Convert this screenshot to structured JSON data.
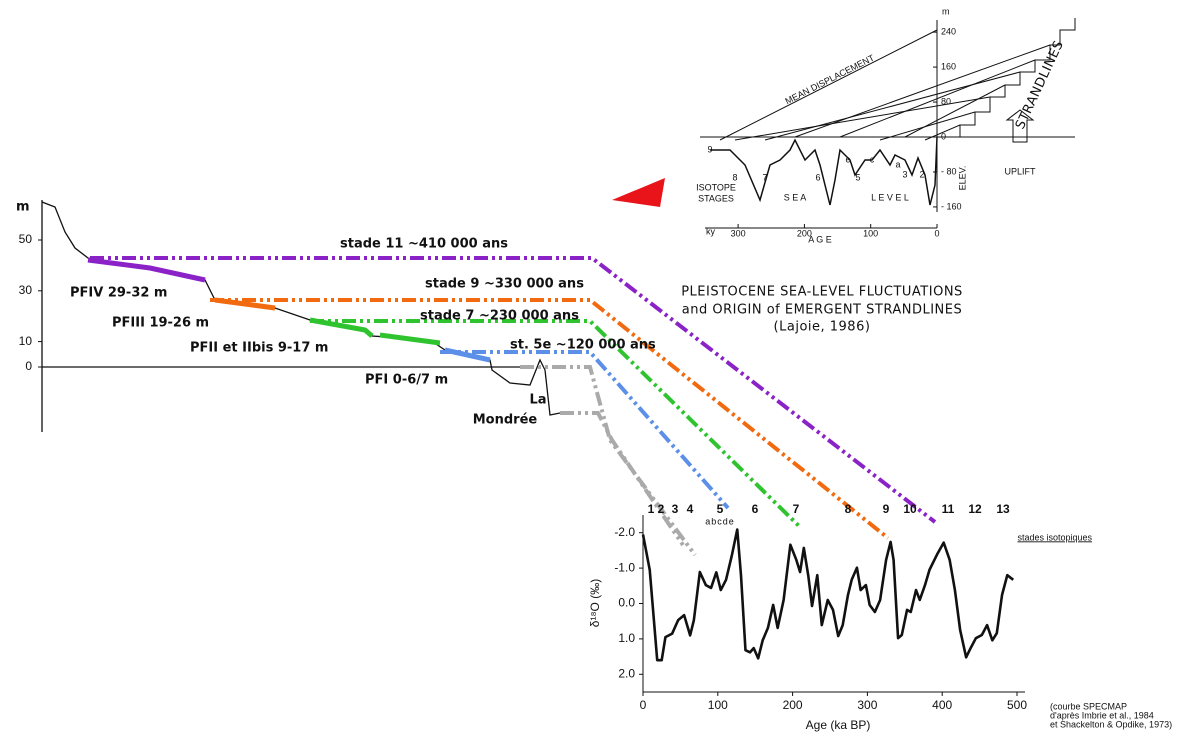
{
  "profile": {
    "y_unit": "m",
    "yticks": [
      50,
      30,
      10,
      0
    ],
    "terraces": [
      {
        "label": "PFIV 29-32 m",
        "color": "#8a22c8"
      },
      {
        "label": "PFIII 19-26 m",
        "color": "#f26a10"
      },
      {
        "label": "PFII et IIbis 9-17 m",
        "color": "#2fc42f"
      },
      {
        "label": "PFI 0-6/7 m",
        "color": "#5b8fe8"
      }
    ],
    "stades": [
      {
        "label": "stade 11 ~410 000 ans",
        "color": "#8a22c8"
      },
      {
        "label": "stade 9 ~330 000 ans",
        "color": "#f26a10"
      },
      {
        "label": "stade 7 ~230 000 ans",
        "color": "#2fc42f"
      },
      {
        "label": "st. 5e ~120 000 ans",
        "color": "#5b8fe8"
      }
    ],
    "place": [
      "La",
      "Mondrée"
    ]
  },
  "inset": {
    "mean_displacement": "MEAN DISPLACEMENT",
    "strandlines": "STRANDLINES",
    "uplift": "UPLIFT",
    "sea": "S E A",
    "level": "L E V E L",
    "isotope_stages": [
      "ISOTOPE",
      "STAGES"
    ],
    "elev": "ELEV.",
    "age": "A G E",
    "ky": "ky",
    "m": "m",
    "stage_numbers": [
      "9",
      "8",
      "7",
      "6",
      "5",
      "e",
      "c",
      "a",
      "3",
      "2"
    ],
    "age_ticks": [
      300,
      200,
      100,
      0
    ],
    "elev_ticks": [
      240,
      160,
      80,
      0,
      {
        "value": -80,
        "label": "- 80"
      },
      {
        "value": -160,
        "label": "- 160"
      }
    ]
  },
  "title": [
    "PLEISTOCENE SEA-LEVEL FLUCTUATIONS",
    "and ORIGIN of EMERGENT STRANDLINES",
    "(Lajoie, 1986)"
  ],
  "chart_data": {
    "type": "line",
    "x_label": "Age (ka BP)",
    "y_label": "δ¹⁸O (‰)",
    "stages_title": "stades isotopiques",
    "stage_labels": [
      "1",
      "2",
      "3",
      "4",
      "5",
      "6",
      "7",
      "8",
      "9",
      "10",
      "11",
      "12",
      "13"
    ],
    "substages": "abcde",
    "xlim": [
      0,
      500
    ],
    "xticks": [
      0,
      100,
      200,
      300,
      400,
      500
    ],
    "ylim": [
      2.5,
      -2.5
    ],
    "yticks": [
      {
        "value": -2,
        "label": "-2.0"
      },
      {
        "value": -1,
        "label": "-1.0"
      },
      {
        "value": 0,
        "label": "0.0"
      },
      {
        "value": 1,
        "label": "1.0"
      },
      {
        "value": 2,
        "label": "2.0"
      }
    ],
    "x": [
      0,
      9,
      19,
      25,
      30,
      39,
      47,
      55,
      63,
      68,
      76,
      84,
      91,
      98,
      104,
      111,
      119,
      126,
      131,
      137,
      143,
      148,
      154,
      160,
      167,
      174,
      180,
      188,
      197,
      205,
      210,
      215,
      221,
      226,
      233,
      239,
      247,
      254,
      261,
      267,
      274,
      279,
      286,
      291,
      298,
      303,
      310,
      317,
      325,
      331,
      335,
      341,
      346,
      353,
      358,
      365,
      370,
      377,
      383,
      393,
      402,
      410,
      417,
      424,
      432,
      438,
      445,
      453,
      460,
      467,
      473,
      480,
      487,
      495
    ],
    "series": [
      {
        "color": "#111111",
        "values": [
          -1.95,
          -0.95,
          1.6,
          1.6,
          0.95,
          0.85,
          0.47,
          0.33,
          0.9,
          0.47,
          -0.89,
          -0.52,
          -0.44,
          -0.88,
          -0.38,
          -0.67,
          -1.38,
          -2.09,
          -0.8,
          1.32,
          1.38,
          1.26,
          1.55,
          1.04,
          0.69,
          0.04,
          0.69,
          -0.1,
          -1.66,
          -1.23,
          -0.89,
          -1.57,
          -0.78,
          0.07,
          -0.8,
          0.61,
          -0.1,
          0.18,
          0.92,
          0.61,
          -0.24,
          -0.67,
          -1.01,
          -0.38,
          -0.52,
          0.04,
          0.24,
          -0.1,
          -1.23,
          -1.74,
          -1.23,
          0.98,
          0.89,
          0.18,
          0.24,
          -0.38,
          -0.1,
          -0.52,
          -0.95,
          -1.38,
          -1.72,
          -1.23,
          -0.38,
          0.75,
          1.52,
          1.26,
          0.98,
          0.89,
          0.61,
          1.04,
          0.84,
          -0.24,
          -0.8,
          -0.67
        ]
      }
    ]
  },
  "citation": [
    "(courbe SPECMAP",
    "d'après Imbrie et al., 1984",
    "et Shackelton & Opdike, 1973)"
  ]
}
